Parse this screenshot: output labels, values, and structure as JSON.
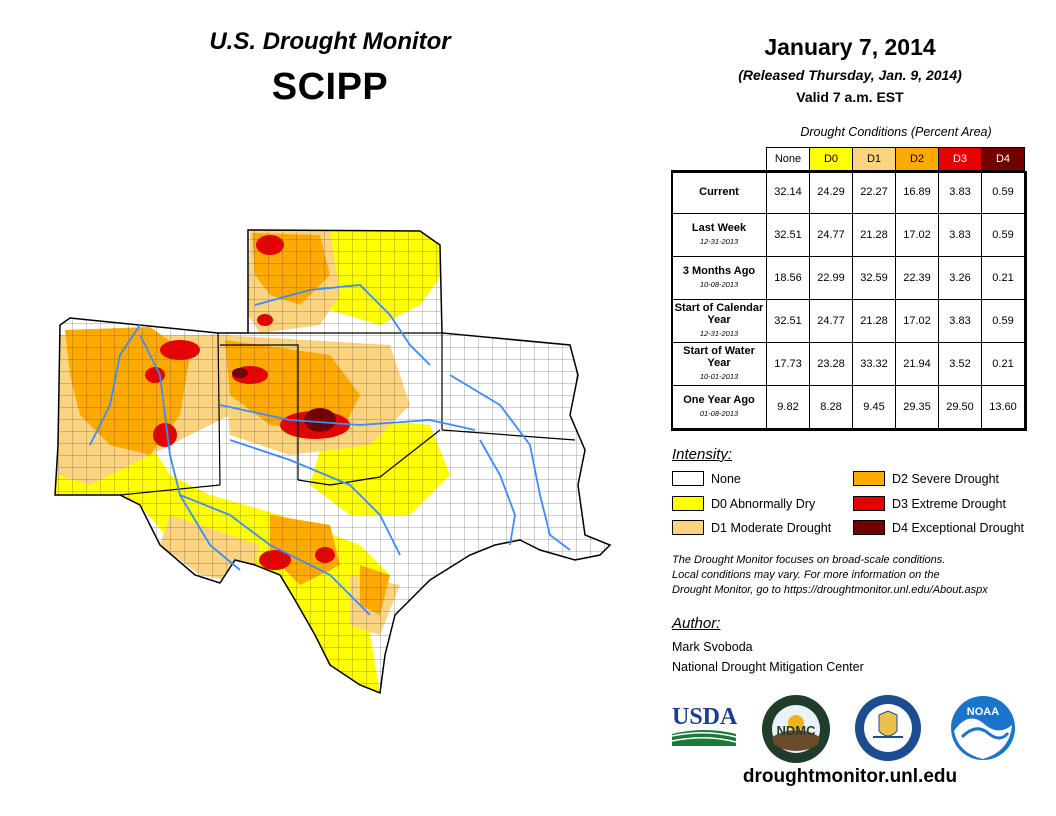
{
  "header": {
    "title": "U.S. Drought Monitor",
    "region": "SCIPP",
    "date": "January 7, 2014",
    "released": "(Released Thursday, Jan. 9, 2014)",
    "valid": "Valid 7 a.m. EST"
  },
  "table": {
    "title": "Drought Conditions (Percent Area)",
    "columns": [
      "None",
      "D0",
      "D1",
      "D2",
      "D3",
      "D4"
    ],
    "rows": [
      {
        "label": "Current",
        "sublabel": "",
        "values": [
          "32.14",
          "24.29",
          "22.27",
          "16.89",
          "3.83",
          "0.59"
        ]
      },
      {
        "label": "Last Week",
        "sublabel": "12-31-2013",
        "values": [
          "32.51",
          "24.77",
          "21.28",
          "17.02",
          "3.83",
          "0.59"
        ]
      },
      {
        "label": "3 Months Ago",
        "sublabel": "10-08-2013",
        "values": [
          "18.56",
          "22.99",
          "32.59",
          "22.39",
          "3.26",
          "0.21"
        ]
      },
      {
        "label": "Start of Calendar Year",
        "sublabel": "12-31-2013",
        "values": [
          "32.51",
          "24.77",
          "21.28",
          "17.02",
          "3.83",
          "0.59"
        ]
      },
      {
        "label": "Start of Water Year",
        "sublabel": "10-01-2013",
        "values": [
          "17.73",
          "23.28",
          "33.32",
          "21.94",
          "3.52",
          "0.21"
        ]
      },
      {
        "label": "One Year Ago",
        "sublabel": "01-08-2013",
        "values": [
          "9.82",
          "8.28",
          "9.45",
          "29.35",
          "29.50",
          "13.60"
        ]
      }
    ]
  },
  "legend": {
    "title": "Intensity:",
    "items": [
      {
        "label": "None",
        "color": "#ffffff"
      },
      {
        "label": "D0 Abnormally Dry",
        "color": "#ffff00"
      },
      {
        "label": "D1 Moderate Drought",
        "color": "#fcd37f"
      },
      {
        "label": "D2 Severe Drought",
        "color": "#ffaa00"
      },
      {
        "label": "D3 Extreme Drought",
        "color": "#e60000"
      },
      {
        "label": "D4 Exceptional Drought",
        "color": "#730000"
      }
    ]
  },
  "note": {
    "line1": "The Drought Monitor focuses on broad-scale conditions.",
    "line2": "Local conditions may vary. For more information on the",
    "line3": "Drought Monitor, go to https://droughtmonitor.unl.edu/About.aspx"
  },
  "author": {
    "heading": "Author:",
    "name": "Mark Svoboda",
    "org": "National Drought Mitigation Center"
  },
  "logos": {
    "usda": "USDA",
    "ndmc": "NDMC",
    "noaa": "NOAA"
  },
  "website": "droughtmonitor.unl.edu"
}
